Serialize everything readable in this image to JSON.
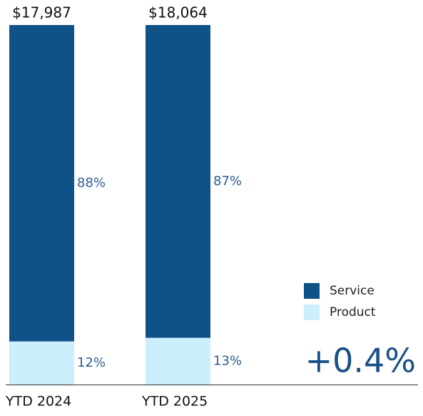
{
  "chart_data": {
    "type": "stacked_bar",
    "categories": [
      "YTD 2024",
      "YTD 2025"
    ],
    "series": [
      {
        "name": "Product",
        "color": "#cdeefc",
        "values": [
          12,
          13
        ],
        "value_labels": [
          "12%",
          "13%"
        ]
      },
      {
        "name": "Service",
        "color": "#0f5287",
        "values": [
          88,
          87
        ],
        "value_labels": [
          "88%",
          "87%"
        ]
      }
    ],
    "totals": {
      "values": [
        17987,
        18064
      ],
      "value_labels": [
        "$17,987",
        "$18,064"
      ]
    },
    "annotation": "+0.4%"
  }
}
